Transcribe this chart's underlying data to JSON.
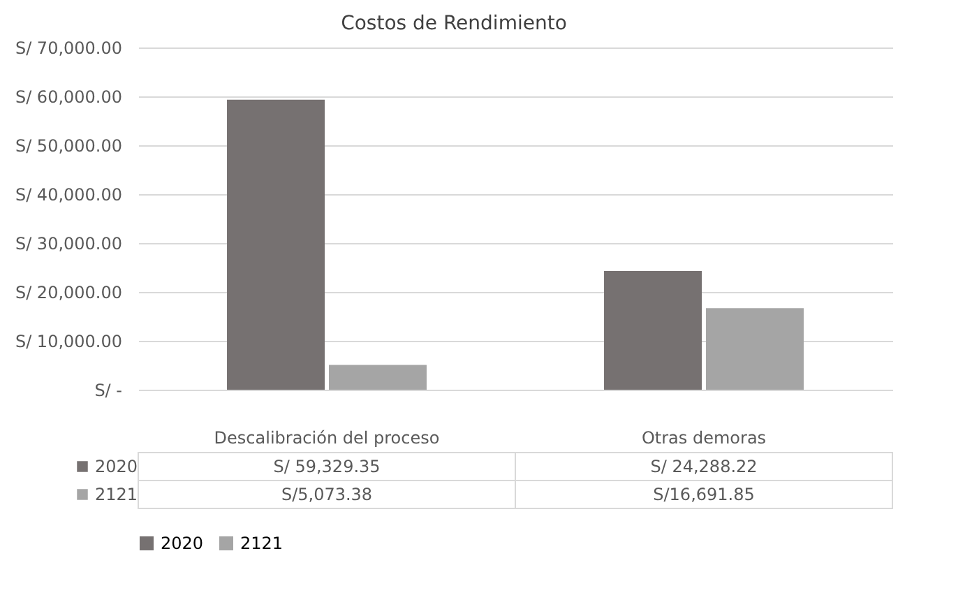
{
  "chart_data": {
    "type": "bar",
    "title": "Costos de Rendimiento",
    "categories": [
      "Descalibración del proceso",
      "Otras demoras"
    ],
    "series": [
      {
        "name": "2020",
        "color": "#767171",
        "values": [
          59329.35,
          24288.22
        ],
        "value_labels": [
          "S/ 59,329.35",
          "S/ 24,288.22"
        ]
      },
      {
        "name": "2121",
        "color": "#a5a5a5",
        "values": [
          5073.38,
          16691.85
        ],
        "value_labels": [
          "S/5,073.38",
          "S/16,691.85"
        ]
      }
    ],
    "ylim": [
      0,
      70000
    ],
    "yticks": [
      {
        "value": 0,
        "label": "S/ -"
      },
      {
        "value": 10000,
        "label": "S/ 10,000.00"
      },
      {
        "value": 20000,
        "label": "S/ 20,000.00"
      },
      {
        "value": 30000,
        "label": "S/ 30,000.00"
      },
      {
        "value": 40000,
        "label": "S/ 40,000.00"
      },
      {
        "value": 50000,
        "label": "S/ 50,000.00"
      },
      {
        "value": 60000,
        "label": "S/ 60,000.00"
      },
      {
        "value": 70000,
        "label": "S/ 70,000.00"
      }
    ],
    "grid": "y",
    "legend": "bottom"
  }
}
